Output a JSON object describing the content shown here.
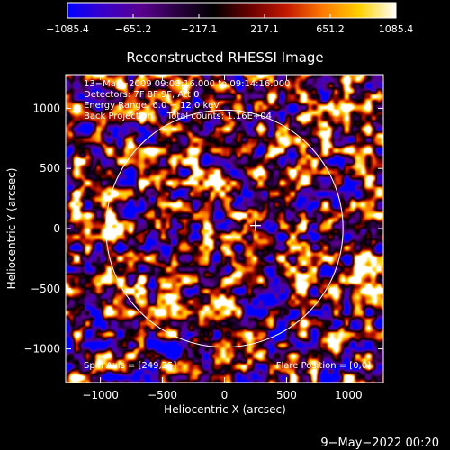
{
  "chart_data": {
    "type": "heatmap",
    "title": "Reconstructed RHESSI Image",
    "xlabel": "Heliocentric X (arcsec)",
    "ylabel": "Heliocentric Y (arcsec)",
    "xlim": [
      -1280,
      1280
    ],
    "ylim": [
      -1280,
      1280
    ],
    "xticks": [
      -1000,
      -500,
      0,
      500,
      1000
    ],
    "yticks": [
      -1000,
      -500,
      0,
      500,
      1000
    ],
    "xtick_labels": [
      "−1000",
      "−500",
      "0",
      "500",
      "1000"
    ],
    "ytick_labels": [
      "−1000",
      "−500",
      "0",
      "500",
      "1000"
    ],
    "colorbar": {
      "min": -1085.4,
      "max": 1085.4,
      "ticks": [
        -1085.4,
        -651.2,
        -217.1,
        217.1,
        651.2,
        1085.4
      ],
      "tick_labels": [
        "−1085.4",
        "−651.2",
        "−217.1",
        "217.1",
        "651.2",
        "1085.4"
      ]
    },
    "annotations": [
      "13−May−2009 09:08:16.000 to 09:14:16.000",
      "Detectors: 7F 8F 9F, Att 0",
      "Energy Range: 6.0 − 12.0 keV",
      "Back Projection     Total counts: 1.16E+04"
    ],
    "spin_axis": "Spin Axis = [249,25]",
    "flare_position": "Flare Position = [0,0]",
    "crosshair": {
      "x": 249,
      "y": 25
    },
    "solar_limb": {
      "center_x": 0,
      "center_y": 0,
      "radius": 955
    },
    "colormap": [
      "#0000ff",
      "#3a00c8",
      "#5a0090",
      "#2a0040",
      "#000000",
      "#6a0000",
      "#c21800",
      "#ff7a00",
      "#ffd000",
      "#ffffff"
    ]
  },
  "footer": {
    "timestamp": "9−May−2022 00:20"
  }
}
